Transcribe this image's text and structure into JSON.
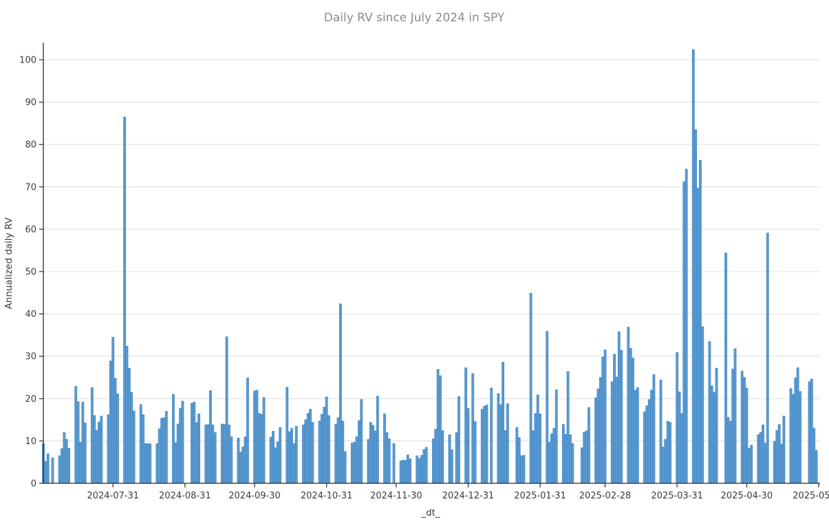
{
  "chart_data": {
    "type": "bar",
    "title": "Daily RV since July 2024 in SPY",
    "xlabel": "_dt_",
    "ylabel": "Annualized daily RV",
    "ylim": [
      0,
      104
    ],
    "x_range": [
      "2024-07-01",
      "2025-05-31"
    ],
    "grid": true,
    "legend": "none",
    "bar_color": "#5a9ad1",
    "bar_edge_color": "#3f83bd",
    "background_color": "#ffffff",
    "gridline_color": "#e0e0e0",
    "spine_color": "#2b2b2b",
    "title_color": "#8b8b8b",
    "y_ticks": [
      0,
      10,
      20,
      30,
      40,
      50,
      60,
      70,
      80,
      90,
      100
    ],
    "x_ticks": [
      "2024-07-31",
      "2024-08-31",
      "2024-09-30",
      "2024-10-31",
      "2024-11-30",
      "2024-12-31",
      "2025-01-31",
      "2025-02-28",
      "2025-03-31",
      "2025-04-30",
      "2025-05-31"
    ],
    "series": [
      {
        "name": "Annualized daily RV",
        "dates": [
          "2024-07-01",
          "2024-07-02",
          "2024-07-03",
          "2024-07-05",
          "2024-07-08",
          "2024-07-09",
          "2024-07-10",
          "2024-07-11",
          "2024-07-12",
          "2024-07-15",
          "2024-07-16",
          "2024-07-17",
          "2024-07-18",
          "2024-07-19",
          "2024-07-22",
          "2024-07-23",
          "2024-07-24",
          "2024-07-25",
          "2024-07-26",
          "2024-07-29",
          "2024-07-30",
          "2024-07-31",
          "2024-08-01",
          "2024-08-02",
          "2024-08-05",
          "2024-08-06",
          "2024-08-07",
          "2024-08-08",
          "2024-08-09",
          "2024-08-12",
          "2024-08-13",
          "2024-08-14",
          "2024-08-15",
          "2024-08-16",
          "2024-08-19",
          "2024-08-20",
          "2024-08-21",
          "2024-08-22",
          "2024-08-23",
          "2024-08-26",
          "2024-08-27",
          "2024-08-28",
          "2024-08-29",
          "2024-08-30",
          "2024-09-03",
          "2024-09-04",
          "2024-09-05",
          "2024-09-06",
          "2024-09-09",
          "2024-09-10",
          "2024-09-11",
          "2024-09-12",
          "2024-09-13",
          "2024-09-16",
          "2024-09-17",
          "2024-09-18",
          "2024-09-19",
          "2024-09-20",
          "2024-09-23",
          "2024-09-24",
          "2024-09-25",
          "2024-09-26",
          "2024-09-27",
          "2024-09-30",
          "2024-10-01",
          "2024-10-02",
          "2024-10-03",
          "2024-10-04",
          "2024-10-07",
          "2024-10-08",
          "2024-10-09",
          "2024-10-10",
          "2024-10-11",
          "2024-10-14",
          "2024-10-15",
          "2024-10-16",
          "2024-10-17",
          "2024-10-18",
          "2024-10-21",
          "2024-10-22",
          "2024-10-23",
          "2024-10-24",
          "2024-10-25",
          "2024-10-28",
          "2024-10-29",
          "2024-10-30",
          "2024-10-31",
          "2024-11-01",
          "2024-11-04",
          "2024-11-05",
          "2024-11-06",
          "2024-11-07",
          "2024-11-08",
          "2024-11-11",
          "2024-11-12",
          "2024-11-13",
          "2024-11-14",
          "2024-11-15",
          "2024-11-18",
          "2024-11-19",
          "2024-11-20",
          "2024-11-21",
          "2024-11-22",
          "2024-11-25",
          "2024-11-26",
          "2024-11-27",
          "2024-11-29",
          "2024-12-02",
          "2024-12-03",
          "2024-12-04",
          "2024-12-05",
          "2024-12-06",
          "2024-12-09",
          "2024-12-10",
          "2024-12-11",
          "2024-12-12",
          "2024-12-13",
          "2024-12-16",
          "2024-12-17",
          "2024-12-18",
          "2024-12-19",
          "2024-12-20",
          "2024-12-23",
          "2024-12-24",
          "2024-12-26",
          "2024-12-27",
          "2024-12-30",
          "2024-12-31",
          "2025-01-02",
          "2025-01-03",
          "2025-01-06",
          "2025-01-07",
          "2025-01-08",
          "2025-01-10",
          "2025-01-13",
          "2025-01-14",
          "2025-01-15",
          "2025-01-16",
          "2025-01-17",
          "2025-01-21",
          "2025-01-22",
          "2025-01-23",
          "2025-01-24",
          "2025-01-27",
          "2025-01-28",
          "2025-01-29",
          "2025-01-30",
          "2025-01-31",
          "2025-02-03",
          "2025-02-04",
          "2025-02-05",
          "2025-02-06",
          "2025-02-07",
          "2025-02-10",
          "2025-02-11",
          "2025-02-12",
          "2025-02-13",
          "2025-02-14",
          "2025-02-18",
          "2025-02-19",
          "2025-02-20",
          "2025-02-21",
          "2025-02-24",
          "2025-02-25",
          "2025-02-26",
          "2025-02-27",
          "2025-02-28",
          "2025-03-03",
          "2025-03-04",
          "2025-03-05",
          "2025-03-06",
          "2025-03-07",
          "2025-03-10",
          "2025-03-11",
          "2025-03-12",
          "2025-03-13",
          "2025-03-14",
          "2025-03-17",
          "2025-03-18",
          "2025-03-19",
          "2025-03-20",
          "2025-03-21",
          "2025-03-24",
          "2025-03-25",
          "2025-03-26",
          "2025-03-27",
          "2025-03-28",
          "2025-03-31",
          "2025-04-01",
          "2025-04-02",
          "2025-04-03",
          "2025-04-04",
          "2025-04-07",
          "2025-04-08",
          "2025-04-09",
          "2025-04-10",
          "2025-04-11",
          "2025-04-14",
          "2025-04-15",
          "2025-04-16",
          "2025-04-17",
          "2025-04-21",
          "2025-04-22",
          "2025-04-23",
          "2025-04-24",
          "2025-04-25",
          "2025-04-28",
          "2025-04-29",
          "2025-04-30",
          "2025-05-01",
          "2025-05-02",
          "2025-05-05",
          "2025-05-06",
          "2025-05-07",
          "2025-05-08",
          "2025-05-09",
          "2025-05-12",
          "2025-05-13",
          "2025-05-14",
          "2025-05-15",
          "2025-05-16",
          "2025-05-19",
          "2025-05-20",
          "2025-05-21",
          "2025-05-22",
          "2025-05-23",
          "2025-05-27",
          "2025-05-28",
          "2025-05-29",
          "2025-05-30"
        ],
        "values": [
          9.4,
          5.2,
          7.0,
          6.0,
          6.5,
          8.2,
          12.0,
          10.4,
          8.3,
          22.9,
          19.3,
          9.7,
          19.2,
          14.3,
          22.6,
          16.0,
          12.5,
          14.5,
          15.9,
          16.2,
          28.9,
          34.5,
          24.8,
          21.1,
          86.5,
          32.4,
          27.2,
          21.5,
          17.1,
          18.6,
          16.2,
          9.4,
          9.4,
          9.3,
          9.4,
          12.9,
          15.4,
          15.5,
          17.0,
          21.0,
          9.6,
          14.0,
          17.7,
          19.4,
          18.9,
          19.2,
          14.3,
          16.4,
          13.8,
          13.9,
          21.9,
          13.8,
          12.0,
          14.0,
          13.9,
          34.6,
          13.8,
          11.0,
          10.7,
          7.4,
          8.6,
          11.0,
          24.9,
          21.8,
          22.0,
          16.5,
          16.3,
          20.3,
          10.9,
          12.3,
          8.4,
          9.8,
          13.2,
          22.7,
          12.2,
          13.0,
          9.4,
          13.5,
          13.8,
          15.0,
          16.5,
          17.5,
          14.4,
          14.7,
          16.3,
          18.0,
          20.4,
          16.0,
          14.0,
          15.5,
          42.4,
          14.7,
          7.5,
          9.5,
          9.7,
          11.0,
          14.8,
          19.8,
          10.4,
          14.4,
          13.7,
          12.4,
          20.6,
          16.4,
          12.0,
          10.5,
          9.4,
          5.3,
          5.5,
          5.4,
          6.7,
          5.8,
          6.5,
          5.9,
          6.6,
          8.0,
          8.5,
          10.5,
          12.8,
          26.9,
          25.4,
          12.5,
          11.5,
          7.9,
          12.0,
          20.5,
          27.3,
          17.7,
          25.9,
          14.6,
          17.5,
          18.2,
          18.5,
          22.5,
          21.2,
          18.6,
          28.6,
          12.5,
          18.8,
          13.2,
          10.8,
          6.5,
          6.6,
          44.9,
          12.4,
          16.5,
          20.9,
          16.4,
          35.9,
          9.7,
          11.7,
          13.0,
          22.1,
          13.9,
          11.6,
          26.4,
          11.5,
          9.4,
          8.4,
          12.1,
          12.4,
          17.9,
          20.2,
          22.3,
          25.0,
          29.8,
          31.5,
          24.0,
          30.5,
          25.1,
          35.8,
          31.4,
          36.9,
          31.9,
          29.6,
          22.0,
          22.6,
          16.9,
          18.3,
          19.8,
          22.0,
          25.7,
          24.4,
          8.6,
          10.4,
          14.7,
          14.4,
          30.9,
          21.6,
          16.5,
          71.2,
          74.2,
          102.4,
          83.5,
          69.7,
          76.3,
          37.0,
          33.5,
          23.0,
          21.5,
          27.2,
          54.4,
          15.6,
          14.7,
          27.0,
          31.8,
          26.5,
          25.0,
          22.5,
          8.3,
          9.0,
          11.5,
          12.0,
          13.8,
          9.5,
          59.1,
          9.9,
          12.5,
          13.9,
          9.3,
          15.9,
          22.4,
          21.0,
          24.9,
          27.3,
          21.7,
          24.0,
          24.6,
          13.0,
          7.8
        ]
      }
    ]
  }
}
